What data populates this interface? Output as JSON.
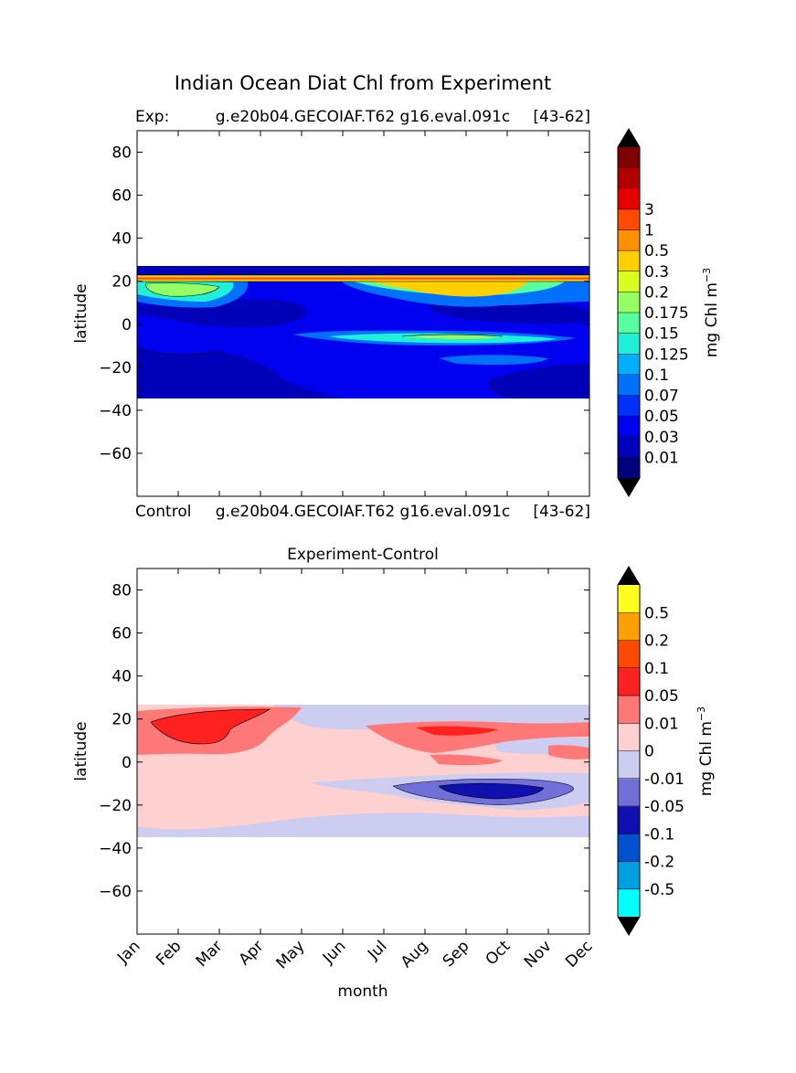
{
  "figure": {
    "title": "Indian Ocean Diat Chl from Experiment"
  },
  "colors": {
    "top": [
      "#00007f",
      "#0000b8",
      "#0000f0",
      "#0030ff",
      "#0070ff",
      "#00b0ff",
      "#20f0d8",
      "#56ffa0",
      "#94ff62",
      "#d8ff20",
      "#ffd000",
      "#ff9000",
      "#ff4c00",
      "#e80000",
      "#b00000",
      "#7f0000"
    ],
    "bottom": [
      "#00ffff",
      "#00a0e0",
      "#0050d0",
      "#1010b0",
      "#7070d8",
      "#cccdf0",
      "#ffd0d0",
      "#ff7878",
      "#ff2020",
      "#ff4800",
      "#ffa000",
      "#ffff20"
    ]
  },
  "chart_data": [
    {
      "type": "contourf",
      "title_left": "Exp:",
      "title_center": "g.e20b04.GECOIAF.T62 g16.eval.091c",
      "title_right": "[43-62]",
      "xlabel": "",
      "ylabel": "latitude",
      "ylim": [
        -80,
        90
      ],
      "yticks": [
        80,
        60,
        40,
        20,
        0,
        -20,
        -40,
        -60
      ],
      "ytick_labels": [
        "80",
        "60",
        "40",
        "20",
        "0",
        "−20",
        "−40",
        "−60"
      ],
      "data_lat_range": [
        -34,
        27
      ],
      "colorbar": {
        "label": "mg Chl m",
        "label_sup": "−3",
        "levels": [
          "0.01",
          "0.03",
          "0.05",
          "0.07",
          "0.1",
          "0.125",
          "0.15",
          "0.175",
          "0.2",
          "0.3",
          "0.5",
          "1",
          "3"
        ],
        "extend": "both"
      }
    },
    {
      "type": "contourf",
      "title_left": "Control",
      "title_center": "g.e20b04.GECOIAF.T62 g16.eval.091c",
      "title_right": "[43-62]",
      "title": "Experiment-Control",
      "xlabel": "month",
      "ylabel": "latitude",
      "ylim": [
        -80,
        90
      ],
      "yticks": [
        80,
        60,
        40,
        20,
        0,
        -20,
        -40,
        -60
      ],
      "ytick_labels": [
        "80",
        "60",
        "40",
        "20",
        "0",
        "−20",
        "−40",
        "−60"
      ],
      "xtick_labels": [
        "Jan",
        "Feb",
        "Mar",
        "Apr",
        "May",
        "Jun",
        "Jul",
        "Aug",
        "Sep",
        "Oct",
        "Nov",
        "Dec"
      ],
      "data_lat_range": [
        -34,
        27
      ],
      "colorbar": {
        "label": "mg Chl m",
        "label_sup": "−3",
        "levels": [
          "-0.5",
          "-0.2",
          "-0.1",
          "-0.05",
          "-0.01",
          "0",
          "0.01",
          "0.05",
          "0.1",
          "0.2",
          "0.5"
        ],
        "extend": "both"
      }
    }
  ]
}
